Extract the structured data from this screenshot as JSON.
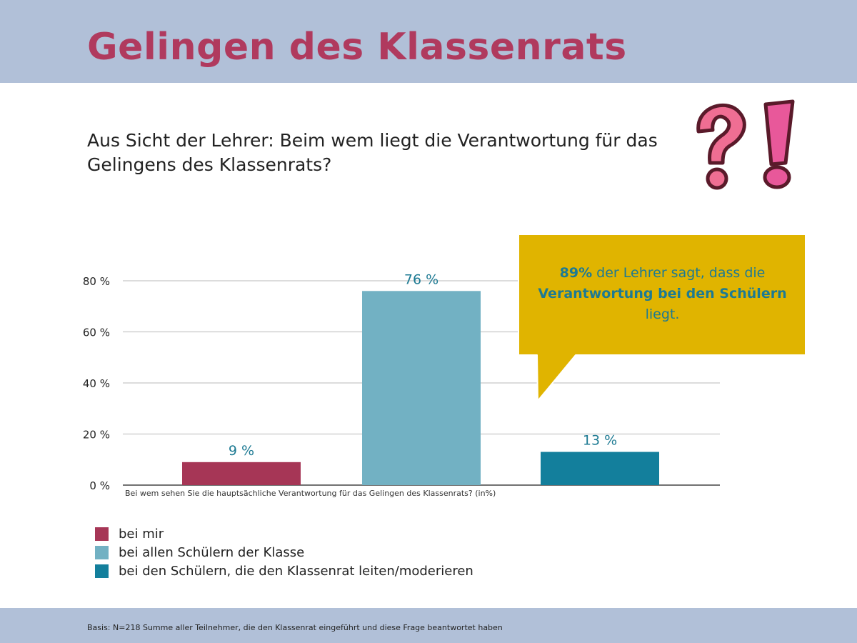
{
  "title": "Gelingen des Klassenrats",
  "subtitle": "Aus Sicht der Lehrer: Beim wem liegt die Verantwortung für das Gelingens des Klassenrats?",
  "callout": {
    "percent": "89%",
    "text_1": " der Lehrer sagt, dass die",
    "emphasis": "Verantwortung bei den Schülern",
    "text_2": "liegt.",
    "color": "#e0b400"
  },
  "icon": "question-exclamation-icon",
  "footnote": "Basis: N=218 Summe aller Teilnehmer, die den Klassenrat eingeführt und diese Frage beantwortet haben",
  "chart_data": {
    "type": "bar",
    "xlabel": "Bei wem sehen Sie die hauptsächliche Verantwortung für das Gelingen des Klassenrats? (in%)",
    "ylabel": "",
    "ylim": [
      0,
      80
    ],
    "yticks": [
      0,
      20,
      40,
      60,
      80
    ],
    "ytick_labels": [
      "0 %",
      "20 %",
      "40 %",
      "60 %",
      "80 %"
    ],
    "grid": true,
    "legend_position": "bottom-left",
    "categories": [
      "bei mir",
      "bei allen Schülern der Klasse",
      "bei den Schülern, die den Klassenrat leiten/moderieren"
    ],
    "values": [
      9,
      76,
      13
    ],
    "value_labels": [
      "9 %",
      "76 %",
      "13 %"
    ],
    "colors": [
      "#a63656",
      "#72b1c3",
      "#137f9c"
    ]
  }
}
